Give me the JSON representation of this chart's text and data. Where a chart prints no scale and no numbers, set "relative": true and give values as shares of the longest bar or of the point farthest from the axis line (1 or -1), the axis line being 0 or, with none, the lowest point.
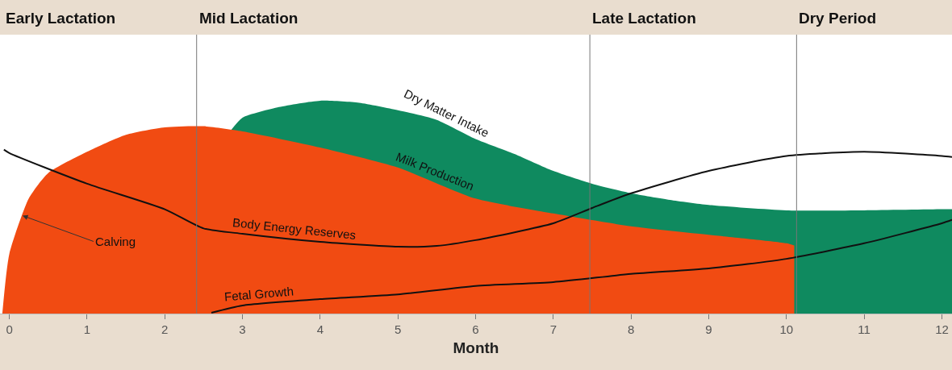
{
  "chart_data": {
    "type": "area",
    "relative": true,
    "xlabel": "Month",
    "tick_labels": "x",
    "grid": false,
    "xlim": [
      -0.12,
      12.13
    ],
    "xticks": [
      0,
      1,
      2,
      3,
      4,
      5,
      6,
      7,
      8,
      9,
      10,
      11,
      12
    ],
    "ref_lines": [
      {
        "axis": "x",
        "value": 2.41,
        "label": "Mid Lactation"
      },
      {
        "axis": "x",
        "value": 7.47,
        "label": "Late Lactation"
      },
      {
        "axis": "x",
        "value": 10.13,
        "label": "Dry Period"
      }
    ],
    "annotations": [
      "Early Lactation",
      {
        "text": "Calving",
        "x": 0.17,
        "y": 0.46
      },
      {
        "text": "Dry Matter Intake",
        "x": 5.57,
        "y": 0.897
      },
      {
        "text": "Milk Production",
        "x": 5.43,
        "y": 0.623
      },
      {
        "text": "Body Energy Reserves",
        "x": 3.65,
        "y": 0.35
      },
      {
        "text": "Fetal Growth",
        "x": 3.22,
        "y": 0.045
      }
    ],
    "series": [
      {
        "color": "#0f8a5f",
        "x": [
          2.85,
          3.0,
          3.47,
          4.0,
          4.5,
          5.0,
          5.5,
          6.0,
          6.5,
          7.0,
          7.5,
          8.0,
          8.5,
          9.0,
          10.0,
          11.0,
          12.0,
          12.13
        ],
        "values": [
          0.86,
          0.92,
          0.97,
          1,
          0.99,
          0.955,
          0.91,
          0.82,
          0.75,
          0.67,
          0.61,
          0.565,
          0.534,
          0.51,
          0.485,
          0.485,
          0.49,
          0.49
        ]
      },
      {
        "color": "#f14b12",
        "x": [
          -0.09,
          0.0,
          0.25,
          0.5,
          1.0,
          1.5,
          2.0,
          2.5,
          3.0,
          4.0,
          5.0,
          6.0,
          7.0,
          8.0,
          9.0,
          10.0,
          10.1
        ],
        "values": [
          0,
          0.28,
          0.54,
          0.66,
          0.76,
          0.84,
          0.875,
          0.88,
          0.856,
          0.78,
          0.686,
          0.54,
          0.47,
          0.41,
          0.37,
          0.33,
          0.32
        ]
      },
      {
        "type": "line",
        "color": "#111111",
        "x": [
          -0.07,
          0,
          1,
          2,
          2.5,
          3,
          4,
          5,
          5.5,
          6,
          7,
          7.5,
          8,
          9,
          10,
          11,
          12,
          12.13
        ],
        "values": [
          0.77,
          0.754,
          0.61,
          0.49,
          0.4,
          0.375,
          0.337,
          0.314,
          0.318,
          0.345,
          0.424,
          0.496,
          0.565,
          0.67,
          0.74,
          0.76,
          0.74,
          0.735
        ]
      },
      {
        "type": "line",
        "color": "#111111",
        "x": [
          2.6,
          3,
          4,
          5,
          6,
          7,
          8,
          9,
          10,
          11,
          12,
          12.13
        ],
        "values": [
          0.004,
          0.038,
          0.068,
          0.09,
          0.13,
          0.148,
          0.186,
          0.212,
          0.257,
          0.33,
          0.424,
          0.44
        ]
      }
    ]
  }
}
